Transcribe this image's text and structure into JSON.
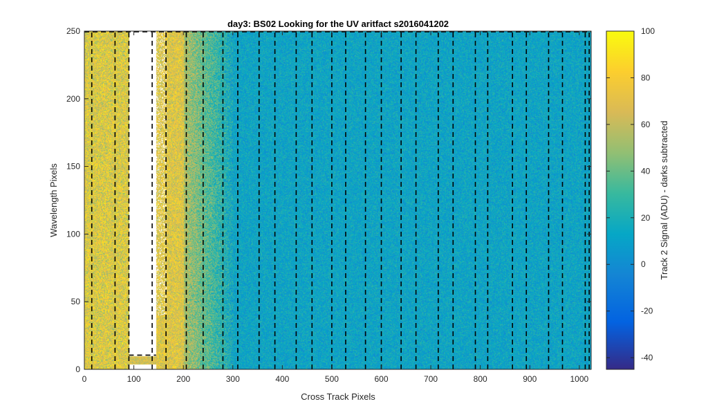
{
  "chart_data": {
    "type": "heatmap",
    "title": "day3: BS02  Looking for the UV aritfact  s2016041202",
    "xlabel": "Cross Track Pixels",
    "ylabel": "Wavelength Pixels",
    "xlim": [
      0,
      1024
    ],
    "ylim": [
      0,
      250
    ],
    "x_ticks": [
      0,
      100,
      200,
      300,
      400,
      500,
      600,
      700,
      800,
      900,
      1000
    ],
    "y_ticks": [
      0,
      50,
      100,
      150,
      200,
      250
    ],
    "colormap": "parula",
    "colorbar": {
      "label": "Track 2 Signal (ADU) - darks subtracted",
      "clim": [
        -45,
        100
      ],
      "ticks": [
        -40,
        -20,
        0,
        20,
        40,
        60,
        80,
        100
      ]
    },
    "regions": [
      {
        "x_range": [
          0,
          90
        ],
        "signal_range": [
          45,
          95
        ]
      },
      {
        "x_range": [
          90,
          145
        ],
        "masked": true,
        "low_band_y_max": 10,
        "low_band_signal": 65
      },
      {
        "x_range": [
          145,
          200
        ],
        "signal_range": [
          50,
          90
        ]
      },
      {
        "x_range": [
          200,
          300
        ],
        "signal_range": [
          15,
          45
        ]
      },
      {
        "x_range": [
          300,
          1024
        ],
        "signal_range": [
          0,
          25
        ]
      }
    ],
    "boundary_x": [
      15,
      62,
      90,
      137,
      165,
      206,
      240,
      280,
      310,
      353,
      385,
      428,
      460,
      500,
      528,
      568,
      600,
      640,
      670,
      715,
      745,
      790,
      815,
      865,
      893,
      938,
      966,
      1012,
      1020
    ],
    "boundary_style": "black dashed",
    "masked_box": {
      "x_range": [
        90,
        165
      ],
      "y_max": 250
    }
  }
}
